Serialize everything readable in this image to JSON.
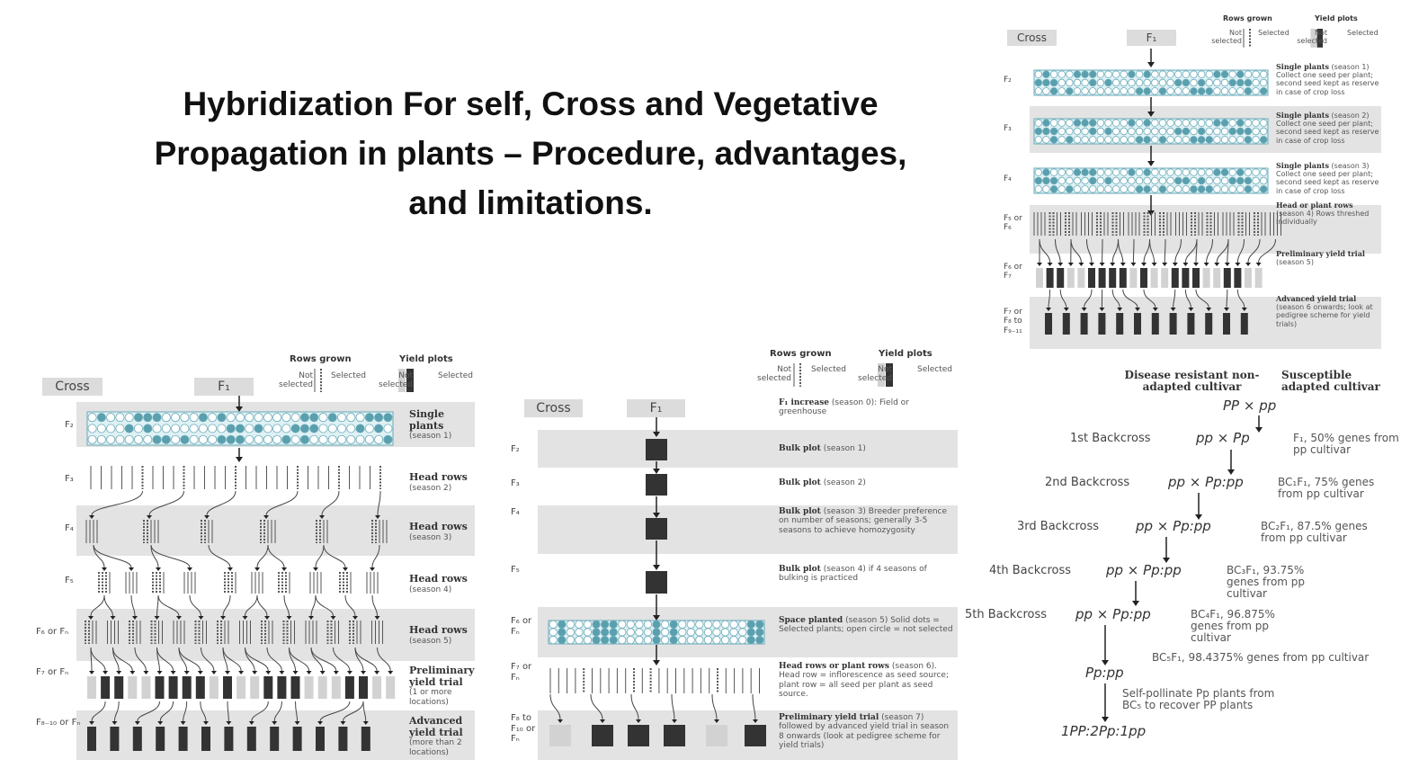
{
  "title": "Hybridization For self, Cross and Vegetative Propagation in plants – Procedure, advantages, and limitations.",
  "colors": {
    "selected_dot": "#5a9fae",
    "band": "#e3e3e3",
    "selected_plot": "#333333",
    "unselected_plot": "#d2d2d2"
  },
  "legend": {
    "rows_grown": "Rows grown",
    "yield_plots": "Yield plots",
    "not_selected": "Not selected",
    "selected": "Selected"
  },
  "pedigree": {
    "cross": "Cross",
    "f1": "F₁",
    "rows": [
      {
        "gen": "F₂",
        "label": "Single plants",
        "detail": "(season 1)"
      },
      {
        "gen": "F₃",
        "label": "Head rows",
        "detail": "(season 2)"
      },
      {
        "gen": "F₄",
        "label": "Head rows",
        "detail": "(season 3)"
      },
      {
        "gen": "F₅",
        "label": "Head rows",
        "detail": "(season 4)"
      },
      {
        "gen": "F₆ or Fₙ",
        "label": "Head rows",
        "detail": "(season 5)"
      },
      {
        "gen": "F₇ or Fₙ",
        "label": "Preliminary yield trial",
        "detail": "(1 or more locations)"
      },
      {
        "gen": "F₈₋₁₀ or Fₙ",
        "label": "Advanced yield trial",
        "detail": "(more than 2 locations)"
      }
    ]
  },
  "bulk": {
    "cross": "Cross",
    "f1": "F₁",
    "f1_increase": {
      "label": "F₁ increase",
      "detail": "(season 0): Field or greenhouse"
    },
    "rows": [
      {
        "gen": "F₂",
        "label": "Bulk plot",
        "detail": "(season 1)"
      },
      {
        "gen": "F₃",
        "label": "Bulk plot",
        "detail": "(season 2)"
      },
      {
        "gen": "F₄",
        "label": "Bulk plot",
        "detail": "(season 3) Breeder preference on number of seasons; generally 3-5 seasons to achieve homozygosity"
      },
      {
        "gen": "F₅",
        "label": "Bulk plot",
        "detail": "(season 4) if 4 seasons of bulking is practiced"
      },
      {
        "gen": "F₆ or Fₙ",
        "label": "Space planted",
        "detail": "(season 5) Solid dots = Selected plants; open circle = not selected"
      },
      {
        "gen": "F₇ or Fₙ",
        "label": "Head rows or plant rows",
        "detail": "(season 6). Head row = inflorescence as seed source; plant row = all seed per plant as seed source."
      },
      {
        "gen": "F₈ to F₁₀ or Fₙ",
        "label": "Preliminary yield trial",
        "detail": "(season 7) followed by advanced yield trial in season 8 onwards (look at pedigree scheme for yield trials)"
      }
    ]
  },
  "ssd": {
    "cross": "Cross",
    "f1": "F₁",
    "rows": [
      {
        "gen": "F₂",
        "label": "Single plants",
        "detail": "(season 1) Collect one seed per plant; second seed kept as reserve in case of crop loss"
      },
      {
        "gen": "F₃",
        "label": "Single plants",
        "detail": "(season 2) Collect one seed per plant; second seed kept as reserve in case of crop loss"
      },
      {
        "gen": "F₄",
        "label": "Single plants",
        "detail": "(season 3) Collect one seed per plant; second seed kept as reserve in case of crop loss"
      },
      {
        "gen": "F₅ or F₆",
        "label": "Head or plant rows",
        "detail": "(season 4) Rows threshed individually"
      },
      {
        "gen": "F₆ or F₇",
        "label": "Preliminary yield trial",
        "detail": "(season 5)"
      },
      {
        "gen": "F₇ or F₈ to F₉₋₁₁",
        "label": "Advanced yield trial",
        "detail": "(season 6 onwards; look at pedigree scheme for yield trials)"
      }
    ]
  },
  "backcross": {
    "parent1": "Disease resistant non-adapted cultivar",
    "parent2": "Susceptible adapted cultivar",
    "initial_cross": "PP  ×  pp",
    "steps": [
      {
        "name": "1st Backcross",
        "cross": "pp  ×  Pp",
        "note": "F₁, 50% genes from pp cultivar"
      },
      {
        "name": "2nd Backcross",
        "cross": "pp × Pp:pp",
        "note": "BC₁F₁, 75% genes from pp cultivar"
      },
      {
        "name": "3rd Backcross",
        "cross": "pp × Pp:pp",
        "note": "BC₂F₁, 87.5% genes from pp cultivar"
      },
      {
        "name": "4th Backcross",
        "cross": "pp × Pp:pp",
        "note": "BC₃F₁, 93.75% genes from pp cultivar"
      },
      {
        "name": "5th Backcross",
        "cross": "pp × Pp:pp",
        "note": "BC₄F₁, 96.875% genes from pp cultivar"
      }
    ],
    "bc5_note": "BC₅F₁, 98.4375% genes from pp cultivar",
    "bc5_result": "Pp:pp",
    "self_note": "Self-pollinate Pp plants from BC₅ to recover PP plants",
    "final_ratio": "1PP:2Pp:1pp"
  }
}
